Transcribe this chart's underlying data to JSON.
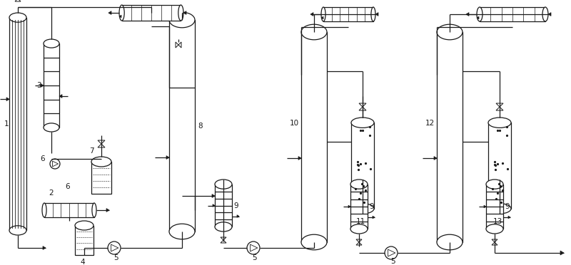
{
  "bg_color": "#ffffff",
  "line_color": "#1a1a1a",
  "fig_width": 8.0,
  "fig_height": 3.72,
  "dpi": 100,
  "lw": 0.9
}
